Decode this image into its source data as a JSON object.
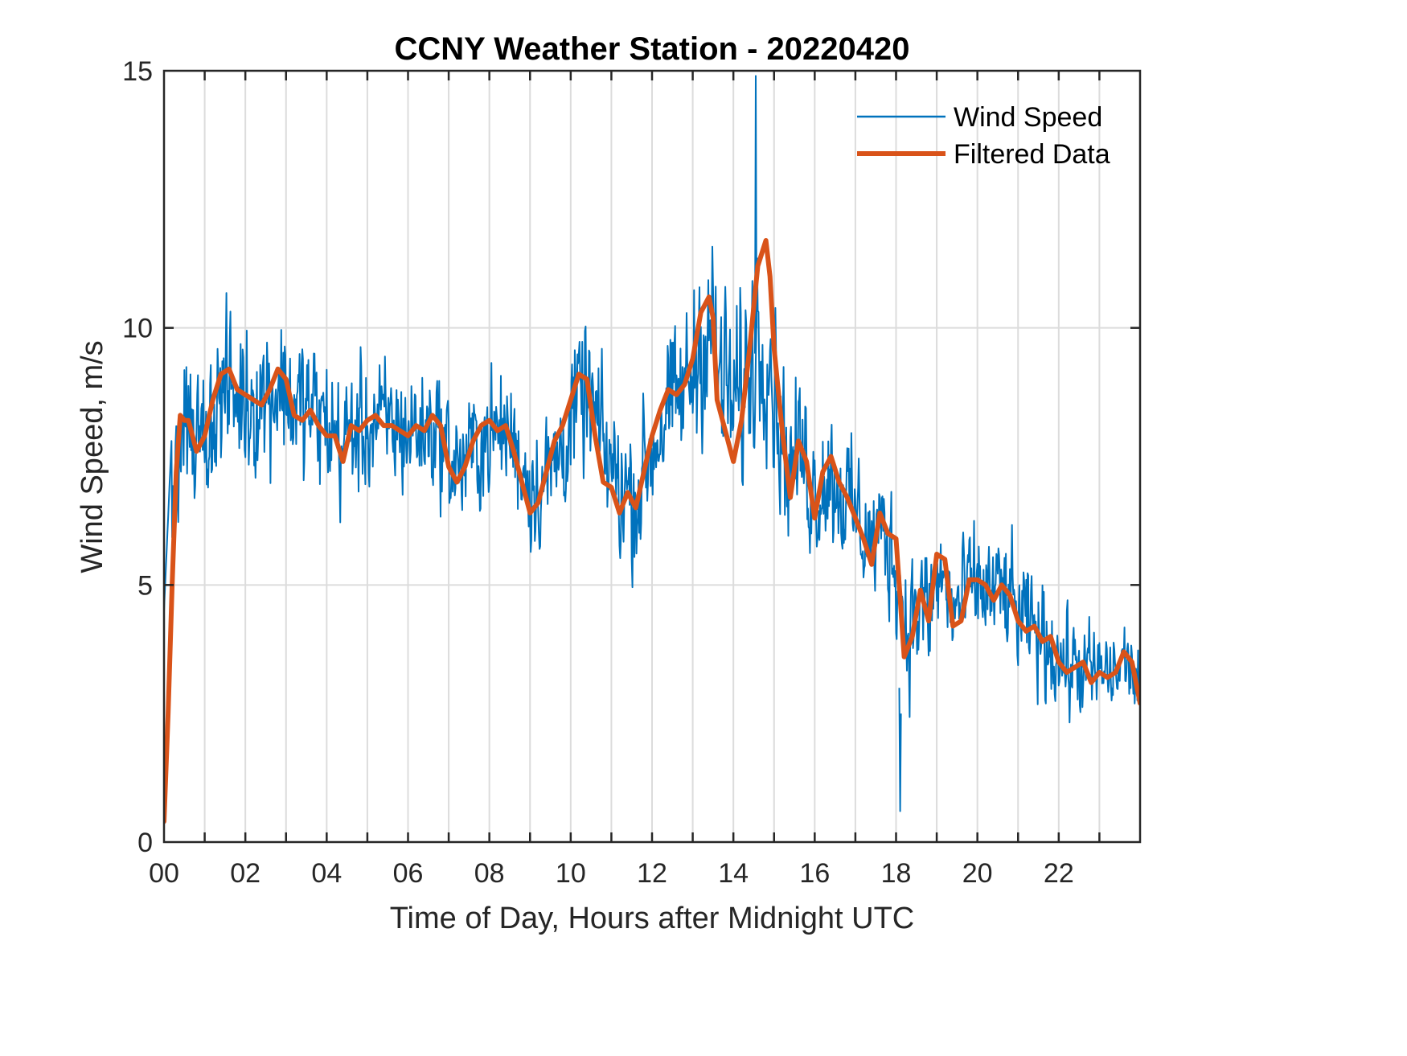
{
  "chart_data": {
    "type": "line",
    "title": "CCNY Weather Station - 20220420",
    "xlabel": "Time of Day, Hours after Midnight UTC",
    "ylabel": "Wind Speed, m/s",
    "xlim": [
      0,
      24
    ],
    "ylim": [
      0,
      15
    ],
    "x_ticks": [
      0,
      2,
      4,
      6,
      8,
      10,
      12,
      14,
      16,
      18,
      20,
      22
    ],
    "x_tick_labels": [
      "00",
      "02",
      "04",
      "06",
      "08",
      "10",
      "12",
      "14",
      "16",
      "18",
      "20",
      "22"
    ],
    "x_minor_grid_step_hours": 1,
    "y_ticks": [
      0,
      5,
      10,
      15
    ],
    "y_tick_labels": [
      "0",
      "5",
      "10",
      "15"
    ],
    "grid": true,
    "legend": {
      "placement": "top-right",
      "entries": [
        "Wind Speed",
        "Filtered Data"
      ]
    },
    "colors": {
      "wind_speed": "#0072BD",
      "filtered": "#D95319",
      "axis": "#262626",
      "grid": "#DCDCDC"
    },
    "series": [
      {
        "name": "Filtered Data",
        "x": [
          0.0,
          0.1,
          0.2,
          0.3,
          0.4,
          0.5,
          0.6,
          0.8,
          1.0,
          1.2,
          1.4,
          1.6,
          1.8,
          2.0,
          2.2,
          2.4,
          2.6,
          2.8,
          3.0,
          3.2,
          3.4,
          3.6,
          3.8,
          4.0,
          4.2,
          4.4,
          4.6,
          4.8,
          5.0,
          5.2,
          5.4,
          5.6,
          5.8,
          6.0,
          6.2,
          6.4,
          6.6,
          6.8,
          7.0,
          7.2,
          7.4,
          7.6,
          7.8,
          8.0,
          8.2,
          8.4,
          8.6,
          8.8,
          9.0,
          9.2,
          9.4,
          9.6,
          9.8,
          10.0,
          10.2,
          10.4,
          10.6,
          10.8,
          11.0,
          11.2,
          11.4,
          11.6,
          11.8,
          12.0,
          12.2,
          12.4,
          12.6,
          12.8,
          13.0,
          13.2,
          13.4,
          13.5,
          13.6,
          13.8,
          14.0,
          14.2,
          14.4,
          14.6,
          14.8,
          14.9,
          15.0,
          15.2,
          15.4,
          15.6,
          15.8,
          16.0,
          16.2,
          16.4,
          16.6,
          16.8,
          17.0,
          17.2,
          17.4,
          17.6,
          17.8,
          18.0,
          18.2,
          18.4,
          18.6,
          18.8,
          19.0,
          19.2,
          19.4,
          19.6,
          19.8,
          20.0,
          20.2,
          20.4,
          20.6,
          20.8,
          21.0,
          21.2,
          21.4,
          21.6,
          21.8,
          22.0,
          22.2,
          22.4,
          22.6,
          22.8,
          23.0,
          23.2,
          23.4,
          23.6,
          23.8,
          24.0
        ],
        "y": [
          0.4,
          2.5,
          5.0,
          7.2,
          8.3,
          8.2,
          8.2,
          7.6,
          7.9,
          8.6,
          9.1,
          9.2,
          8.8,
          8.7,
          8.6,
          8.5,
          8.8,
          9.2,
          9.0,
          8.3,
          8.2,
          8.4,
          8.1,
          7.9,
          7.9,
          7.4,
          8.1,
          8.0,
          8.2,
          8.3,
          8.1,
          8.1,
          8.0,
          7.9,
          8.1,
          8.0,
          8.3,
          8.1,
          7.3,
          7.0,
          7.3,
          7.8,
          8.1,
          8.2,
          8.0,
          8.1,
          7.6,
          7.0,
          6.4,
          6.6,
          7.2,
          7.8,
          8.1,
          8.6,
          9.1,
          9.0,
          7.9,
          7.0,
          6.9,
          6.4,
          6.8,
          6.5,
          7.2,
          7.9,
          8.4,
          8.8,
          8.7,
          8.9,
          9.4,
          10.3,
          10.6,
          10.2,
          8.6,
          8.0,
          7.4,
          8.2,
          9.6,
          11.2,
          11.7,
          11.0,
          9.6,
          8.0,
          6.7,
          7.8,
          7.4,
          6.3,
          7.2,
          7.5,
          7.0,
          6.7,
          6.3,
          5.9,
          5.4,
          6.4,
          6.0,
          5.9,
          3.6,
          4.0,
          4.9,
          4.3,
          5.6,
          5.5,
          4.2,
          4.3,
          5.1,
          5.1,
          5.0,
          4.7,
          5.0,
          4.8,
          4.3,
          4.1,
          4.2,
          3.9,
          4.0,
          3.5,
          3.3,
          3.4,
          3.5,
          3.1,
          3.3,
          3.2,
          3.3,
          3.7,
          3.5,
          2.7
        ]
      },
      {
        "name": "Wind Speed",
        "description": "raw 1-minute samples; envelope per hour (mean and max deviation) as read from the plot",
        "hourly_envelope": {
          "hour": [
            0,
            1,
            2,
            3,
            4,
            5,
            6,
            7,
            8,
            9,
            10,
            11,
            12,
            13,
            14,
            15,
            16,
            17,
            18,
            19,
            20,
            21,
            22,
            23
          ],
          "mean": [
            7.5,
            8.4,
            8.8,
            8.5,
            7.9,
            8.1,
            8.0,
            7.4,
            8.0,
            6.9,
            8.6,
            6.8,
            8.2,
            9.8,
            8.9,
            7.5,
            6.8,
            6.0,
            4.4,
            4.8,
            4.9,
            4.0,
            3.3,
            3.3
          ],
          "spread": [
            2.6,
            2.7,
            2.8,
            2.7,
            2.4,
            2.3,
            2.3,
            2.3,
            2.2,
            2.4,
            2.6,
            2.5,
            2.6,
            3.3,
            3.6,
            2.7,
            2.4,
            2.3,
            2.6,
            2.1,
            2.1,
            2.0,
            1.8,
            1.5
          ]
        },
        "notable_values": {
          "max": 14.9,
          "max_time_hours": 14.55,
          "min": 0.6,
          "min_time_hours": 18.1
        }
      }
    ]
  }
}
